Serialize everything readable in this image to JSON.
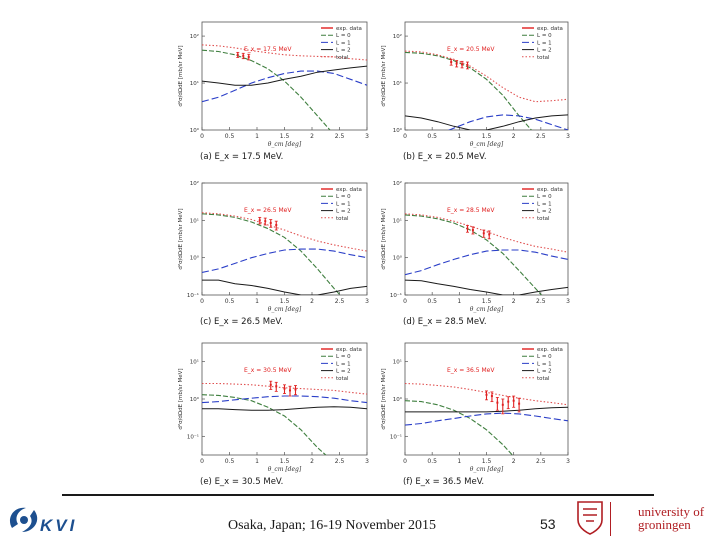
{
  "chart_data": [
    {
      "type": "line",
      "panel": "a",
      "caption": "(a) E_x = 17.5 MeV.",
      "energy_label": "E_x = 17.5 MeV",
      "xlabel": "θ_cm [deg]",
      "ylabel": "d²σ/dΩdE [mb/sr MeV]",
      "xlim": [
        0,
        3
      ],
      "ylim_log10": [
        0,
        2.3
      ],
      "xticks": [
        "0",
        "0.5",
        "1",
        "1.5",
        "2",
        "2.5",
        "3"
      ],
      "yticks": [
        {
          "exp": 0,
          "label": "10⁰"
        },
        {
          "exp": 1,
          "label": "10¹"
        },
        {
          "exp": 2,
          "label": "10²"
        }
      ],
      "legend": [
        "exp. data",
        "L = 0",
        "L = 1",
        "L = 2",
        "total"
      ],
      "series": [
        {
          "name": "L = 0",
          "x": [
            0,
            0.3,
            0.6,
            0.9,
            1.2,
            1.5,
            1.8,
            2.1,
            2.4,
            2.7,
            3.0
          ],
          "y": [
            50,
            47,
            40,
            30,
            20,
            11,
            5,
            2,
            0.8,
            0.3,
            0.1
          ]
        },
        {
          "name": "L = 1",
          "x": [
            0,
            0.3,
            0.6,
            0.9,
            1.2,
            1.5,
            1.8,
            2.1,
            2.4,
            2.7,
            3.0
          ],
          "y": [
            4,
            5,
            7,
            10,
            13,
            16,
            18,
            18,
            16,
            12,
            9
          ]
        },
        {
          "name": "L = 2",
          "x": [
            0,
            0.3,
            0.6,
            0.9,
            1.2,
            1.5,
            1.8,
            2.1,
            2.4,
            2.7,
            3.0
          ],
          "y": [
            11,
            10,
            9,
            9,
            10,
            12,
            14,
            17,
            19,
            21,
            23
          ]
        },
        {
          "name": "total",
          "x": [
            0,
            0.3,
            0.6,
            0.9,
            1.2,
            1.5,
            1.8,
            2.1,
            2.4,
            2.7,
            3.0
          ],
          "y": [
            65,
            62,
            56,
            49,
            44,
            40,
            38,
            37,
            36,
            33,
            31
          ]
        }
      ],
      "data_points": [
        {
          "x": 0.65,
          "y": 40,
          "err": 5
        },
        {
          "x": 0.75,
          "y": 38,
          "err": 5
        },
        {
          "x": 0.85,
          "y": 36,
          "err": 5
        }
      ]
    },
    {
      "type": "line",
      "panel": "b",
      "caption": "(b) E_x = 20.5 MeV.",
      "energy_label": "E_x = 20.5 MeV",
      "xlabel": "θ_cm [deg]",
      "ylabel": "d²σ/dΩdE [mb/sr MeV]",
      "xlim": [
        0,
        3
      ],
      "ylim_log10": [
        0,
        2.3
      ],
      "xticks": [
        "0",
        "0.5",
        "1",
        "1.5",
        "2",
        "2.5",
        "3"
      ],
      "yticks": [
        {
          "exp": 0,
          "label": "10⁰"
        },
        {
          "exp": 1,
          "label": "10¹"
        },
        {
          "exp": 2,
          "label": "10²"
        }
      ],
      "legend": [
        "exp. data",
        "L = 0",
        "L = 1",
        "L = 2",
        "total"
      ],
      "series": [
        {
          "name": "L = 0",
          "x": [
            0,
            0.3,
            0.6,
            0.9,
            1.2,
            1.5,
            1.8,
            2.1,
            2.4,
            2.7,
            3.0
          ],
          "y": [
            45,
            43,
            38,
            30,
            21,
            12,
            5.5,
            2,
            0.8,
            0.3,
            0.1
          ]
        },
        {
          "name": "L = 1",
          "x": [
            0,
            0.3,
            0.6,
            0.9,
            1.2,
            1.5,
            1.8,
            2.1,
            2.4,
            2.7,
            3.0
          ],
          "y": [
            0.3,
            0.5,
            0.8,
            1.1,
            1.5,
            1.9,
            2.1,
            2.0,
            1.7,
            1.3,
            1.0
          ]
        },
        {
          "name": "L = 2",
          "x": [
            0,
            0.3,
            0.6,
            0.9,
            1.2,
            1.5,
            1.8,
            2.1,
            2.4,
            2.7,
            3.0
          ],
          "y": [
            2.0,
            1.8,
            1.5,
            1.2,
            1.0,
            1.0,
            1.2,
            1.5,
            1.8,
            2.0,
            2.1
          ]
        },
        {
          "name": "total",
          "x": [
            0,
            0.3,
            0.6,
            0.9,
            1.2,
            1.5,
            1.8,
            2.1,
            2.4,
            2.7,
            3.0
          ],
          "y": [
            48,
            46,
            40,
            32,
            23,
            14,
            8,
            5,
            4,
            4.2,
            4.5
          ]
        }
      ],
      "data_points": [
        {
          "x": 0.85,
          "y": 28,
          "err": 4
        },
        {
          "x": 0.95,
          "y": 26,
          "err": 4
        },
        {
          "x": 1.05,
          "y": 25,
          "err": 4
        },
        {
          "x": 1.15,
          "y": 24,
          "err": 4
        }
      ]
    },
    {
      "type": "line",
      "panel": "c",
      "caption": "(c) E_x = 26.5 MeV.",
      "energy_label": "E_x = 26.5 MeV",
      "xlabel": "θ_cm [deg]",
      "ylabel": "d²σ/dΩdE [mb/sr MeV]",
      "xlim": [
        0,
        3
      ],
      "ylim_log10": [
        -1,
        2
      ],
      "xticks": [
        "0",
        "0.5",
        "1",
        "1.5",
        "2",
        "2.5",
        "3"
      ],
      "yticks": [
        {
          "exp": -1,
          "label": "10⁻¹"
        },
        {
          "exp": 0,
          "label": "10⁰"
        },
        {
          "exp": 1,
          "label": "10¹"
        },
        {
          "exp": 2,
          "label": "10²"
        }
      ],
      "legend": [
        "exp. data",
        "L = 0",
        "L = 1",
        "L = 2",
        "total"
      ],
      "series": [
        {
          "name": "L = 0",
          "x": [
            0,
            0.3,
            0.6,
            0.9,
            1.2,
            1.5,
            1.8,
            2.1,
            2.4,
            2.7,
            3.0
          ],
          "y": [
            15,
            14,
            12,
            9,
            6,
            3.5,
            1.5,
            0.5,
            0.15,
            0.05,
            0.02
          ]
        },
        {
          "name": "L = 1",
          "x": [
            0,
            0.3,
            0.6,
            0.9,
            1.2,
            1.5,
            1.8,
            2.1,
            2.4,
            2.7,
            3.0
          ],
          "y": [
            0.4,
            0.5,
            0.7,
            1.0,
            1.3,
            1.6,
            1.7,
            1.7,
            1.5,
            1.2,
            1.0
          ]
        },
        {
          "name": "L = 2",
          "x": [
            0,
            0.3,
            0.6,
            0.9,
            1.2,
            1.5,
            1.8,
            2.1,
            2.4,
            2.7,
            3.0
          ],
          "y": [
            0.25,
            0.25,
            0.2,
            0.18,
            0.15,
            0.12,
            0.1,
            0.1,
            0.12,
            0.15,
            0.17
          ]
        },
        {
          "name": "total",
          "x": [
            0,
            0.3,
            0.6,
            0.9,
            1.2,
            1.5,
            1.8,
            2.1,
            2.4,
            2.7,
            3.0
          ],
          "y": [
            16,
            15,
            13,
            10.5,
            7.5,
            5.5,
            3.8,
            2.8,
            2.2,
            1.8,
            1.5
          ]
        }
      ],
      "data_points": [
        {
          "x": 1.05,
          "y": 10,
          "err": 2
        },
        {
          "x": 1.15,
          "y": 9.5,
          "err": 2
        },
        {
          "x": 1.25,
          "y": 8.5,
          "err": 2
        },
        {
          "x": 1.35,
          "y": 7.5,
          "err": 2
        }
      ]
    },
    {
      "type": "line",
      "panel": "d",
      "caption": "(d) E_x = 28.5 MeV.",
      "energy_label": "E_x = 28.5 MeV",
      "xlabel": "θ_cm [deg]",
      "ylabel": "d²σ/dΩdE [mb/sr MeV]",
      "xlim": [
        0,
        3
      ],
      "ylim_log10": [
        -1,
        2
      ],
      "xticks": [
        "0",
        "0.5",
        "1",
        "1.5",
        "2",
        "2.5",
        "3"
      ],
      "yticks": [
        {
          "exp": -1,
          "label": "10⁻¹"
        },
        {
          "exp": 0,
          "label": "10⁰"
        },
        {
          "exp": 1,
          "label": "10¹"
        },
        {
          "exp": 2,
          "label": "10²"
        }
      ],
      "legend": [
        "exp. data",
        "L = 0",
        "L = 1",
        "L = 2",
        "total"
      ],
      "series": [
        {
          "name": "L = 0",
          "x": [
            0,
            0.3,
            0.6,
            0.9,
            1.2,
            1.5,
            1.8,
            2.1,
            2.4,
            2.7,
            3.0
          ],
          "y": [
            14,
            13,
            11,
            8.5,
            5.5,
            3,
            1.3,
            0.45,
            0.15,
            0.05,
            0.02
          ]
        },
        {
          "name": "L = 1",
          "x": [
            0,
            0.3,
            0.6,
            0.9,
            1.2,
            1.5,
            1.8,
            2.1,
            2.4,
            2.7,
            3.0
          ],
          "y": [
            0.35,
            0.45,
            0.65,
            0.9,
            1.2,
            1.5,
            1.6,
            1.6,
            1.4,
            1.1,
            0.9
          ]
        },
        {
          "name": "L = 2",
          "x": [
            0,
            0.3,
            0.6,
            0.9,
            1.2,
            1.5,
            1.8,
            2.1,
            2.4,
            2.7,
            3.0
          ],
          "y": [
            0.25,
            0.24,
            0.2,
            0.17,
            0.14,
            0.12,
            0.1,
            0.1,
            0.12,
            0.14,
            0.16
          ]
        },
        {
          "name": "total",
          "x": [
            0,
            0.3,
            0.6,
            0.9,
            1.2,
            1.5,
            1.8,
            2.1,
            2.4,
            2.7,
            3.0
          ],
          "y": [
            15,
            14,
            12,
            9.5,
            7,
            5,
            3.5,
            2.6,
            2,
            1.7,
            1.4
          ]
        }
      ],
      "data_points": [
        {
          "x": 1.15,
          "y": 6,
          "err": 1.2
        },
        {
          "x": 1.25,
          "y": 5.5,
          "err": 1.2
        },
        {
          "x": 1.45,
          "y": 4.5,
          "err": 1
        },
        {
          "x": 1.55,
          "y": 4.2,
          "err": 1
        }
      ]
    },
    {
      "type": "line",
      "panel": "e",
      "caption": "(e) E_x = 30.5 MeV.",
      "energy_label": "E_x = 30.5 MeV",
      "xlabel": "θ_cm [deg]",
      "ylabel": "d²σ/dΩdE [mb/sr MeV]",
      "xlim": [
        0,
        3
      ],
      "ylim_log10": [
        -1.5,
        1.5
      ],
      "xticks": [
        "0",
        "0.5",
        "1",
        "1.5",
        "2",
        "2.5",
        "3"
      ],
      "yticks": [
        {
          "exp": -1,
          "label": "10⁻¹"
        },
        {
          "exp": 0,
          "label": "10⁰"
        },
        {
          "exp": 1,
          "label": "10¹"
        }
      ],
      "legend": [
        "exp. data",
        "L = 0",
        "L = 1",
        "L = 2",
        "total"
      ],
      "series": [
        {
          "name": "L = 0",
          "x": [
            0,
            0.3,
            0.6,
            0.9,
            1.2,
            1.5,
            1.8,
            2.1,
            2.4,
            2.7,
            3.0
          ],
          "y": [
            1.3,
            1.25,
            1.1,
            0.9,
            0.6,
            0.35,
            0.15,
            0.05,
            0.02,
            0.01,
            0.005
          ]
        },
        {
          "name": "L = 1",
          "x": [
            0,
            0.3,
            0.6,
            0.9,
            1.2,
            1.5,
            1.8,
            2.1,
            2.4,
            2.7,
            3.0
          ],
          "y": [
            0.8,
            0.85,
            0.95,
            1.05,
            1.15,
            1.2,
            1.2,
            1.15,
            1.05,
            0.9,
            0.8
          ]
        },
        {
          "name": "L = 2",
          "x": [
            0,
            0.3,
            0.6,
            0.9,
            1.2,
            1.5,
            1.8,
            2.1,
            2.4,
            2.7,
            3.0
          ],
          "y": [
            0.55,
            0.55,
            0.52,
            0.5,
            0.5,
            0.52,
            0.56,
            0.6,
            0.62,
            0.6,
            0.55
          ]
        },
        {
          "name": "total",
          "x": [
            0,
            0.3,
            0.6,
            0.9,
            1.2,
            1.5,
            1.8,
            2.1,
            2.4,
            2.7,
            3.0
          ],
          "y": [
            2.6,
            2.6,
            2.5,
            2.4,
            2.2,
            2.0,
            1.9,
            1.8,
            1.7,
            1.5,
            1.35
          ]
        }
      ],
      "data_points": [
        {
          "x": 1.25,
          "y": 2.4,
          "err": 0.6
        },
        {
          "x": 1.35,
          "y": 2.2,
          "err": 0.6
        },
        {
          "x": 1.5,
          "y": 1.9,
          "err": 0.5
        },
        {
          "x": 1.6,
          "y": 1.7,
          "err": 0.5
        },
        {
          "x": 1.7,
          "y": 1.8,
          "err": 0.5
        }
      ]
    },
    {
      "type": "line",
      "panel": "f",
      "caption": "(f) E_x = 36.5 MeV.",
      "energy_label": "E_x = 36.5 MeV",
      "xlabel": "θ_cm [deg]",
      "ylabel": "d²σ/dΩdE [mb/sr MeV]",
      "xlim": [
        0,
        3
      ],
      "ylim_log10": [
        -1.5,
        1.5
      ],
      "xticks": [
        "0",
        "0.5",
        "1",
        "1.5",
        "2",
        "2.5",
        "3"
      ],
      "yticks": [
        {
          "exp": -1,
          "label": "10⁻¹"
        },
        {
          "exp": 0,
          "label": "10⁰"
        },
        {
          "exp": 1,
          "label": "10¹"
        }
      ],
      "legend": [
        "exp. data",
        "L = 0",
        "L = 1",
        "L = 2",
        "total"
      ],
      "series": [
        {
          "name": "L = 0",
          "x": [
            0,
            0.3,
            0.6,
            0.9,
            1.2,
            1.5,
            1.8,
            2.1,
            2.4,
            2.7,
            3.0
          ],
          "y": [
            0.9,
            0.85,
            0.7,
            0.5,
            0.3,
            0.15,
            0.06,
            0.02,
            0.008,
            0.003,
            0.001
          ]
        },
        {
          "name": "L = 1",
          "x": [
            0,
            0.3,
            0.6,
            0.9,
            1.2,
            1.5,
            1.8,
            2.1,
            2.4,
            2.7,
            3.0
          ],
          "y": [
            0.2,
            0.22,
            0.26,
            0.3,
            0.35,
            0.4,
            0.42,
            0.4,
            0.35,
            0.3,
            0.26
          ]
        },
        {
          "name": "L = 2",
          "x": [
            0,
            0.3,
            0.6,
            0.9,
            1.2,
            1.5,
            1.8,
            2.1,
            2.4,
            2.7,
            3.0
          ],
          "y": [
            0.45,
            0.45,
            0.45,
            0.45,
            0.45,
            0.45,
            0.47,
            0.5,
            0.55,
            0.58,
            0.6
          ]
        },
        {
          "name": "total",
          "x": [
            0,
            0.3,
            0.6,
            0.9,
            1.2,
            1.5,
            1.8,
            2.1,
            2.4,
            2.7,
            3.0
          ],
          "y": [
            2.6,
            2.5,
            2.3,
            2.1,
            1.8,
            1.5,
            1.25,
            1.05,
            0.9,
            0.8,
            0.7
          ]
        }
      ],
      "data_points": [
        {
          "x": 1.5,
          "y": 1.3,
          "err": 0.35
        },
        {
          "x": 1.6,
          "y": 1.2,
          "err": 0.35
        },
        {
          "x": 1.7,
          "y": 0.8,
          "err": 0.3
        },
        {
          "x": 1.8,
          "y": 0.7,
          "err": 0.3
        },
        {
          "x": 1.9,
          "y": 0.85,
          "err": 0.3
        },
        {
          "x": 2.0,
          "y": 0.9,
          "err": 0.3
        },
        {
          "x": 2.1,
          "y": 0.75,
          "err": 0.3
        }
      ]
    }
  ],
  "colors": {
    "exp": "#e02020",
    "L0": "#3f7f3f",
    "L1": "#2b3fc8",
    "L2": "#1a1a1a",
    "total": "#e05050",
    "kvi": "#1d4f8f",
    "rug": "#b01e23"
  },
  "footer": {
    "text": "Osaka, Japan; 16-19 November 2015",
    "page_number": "53"
  },
  "logos": {
    "kvi": "KVI",
    "rug_line1": "university of",
    "rug_line2": "groningen"
  }
}
